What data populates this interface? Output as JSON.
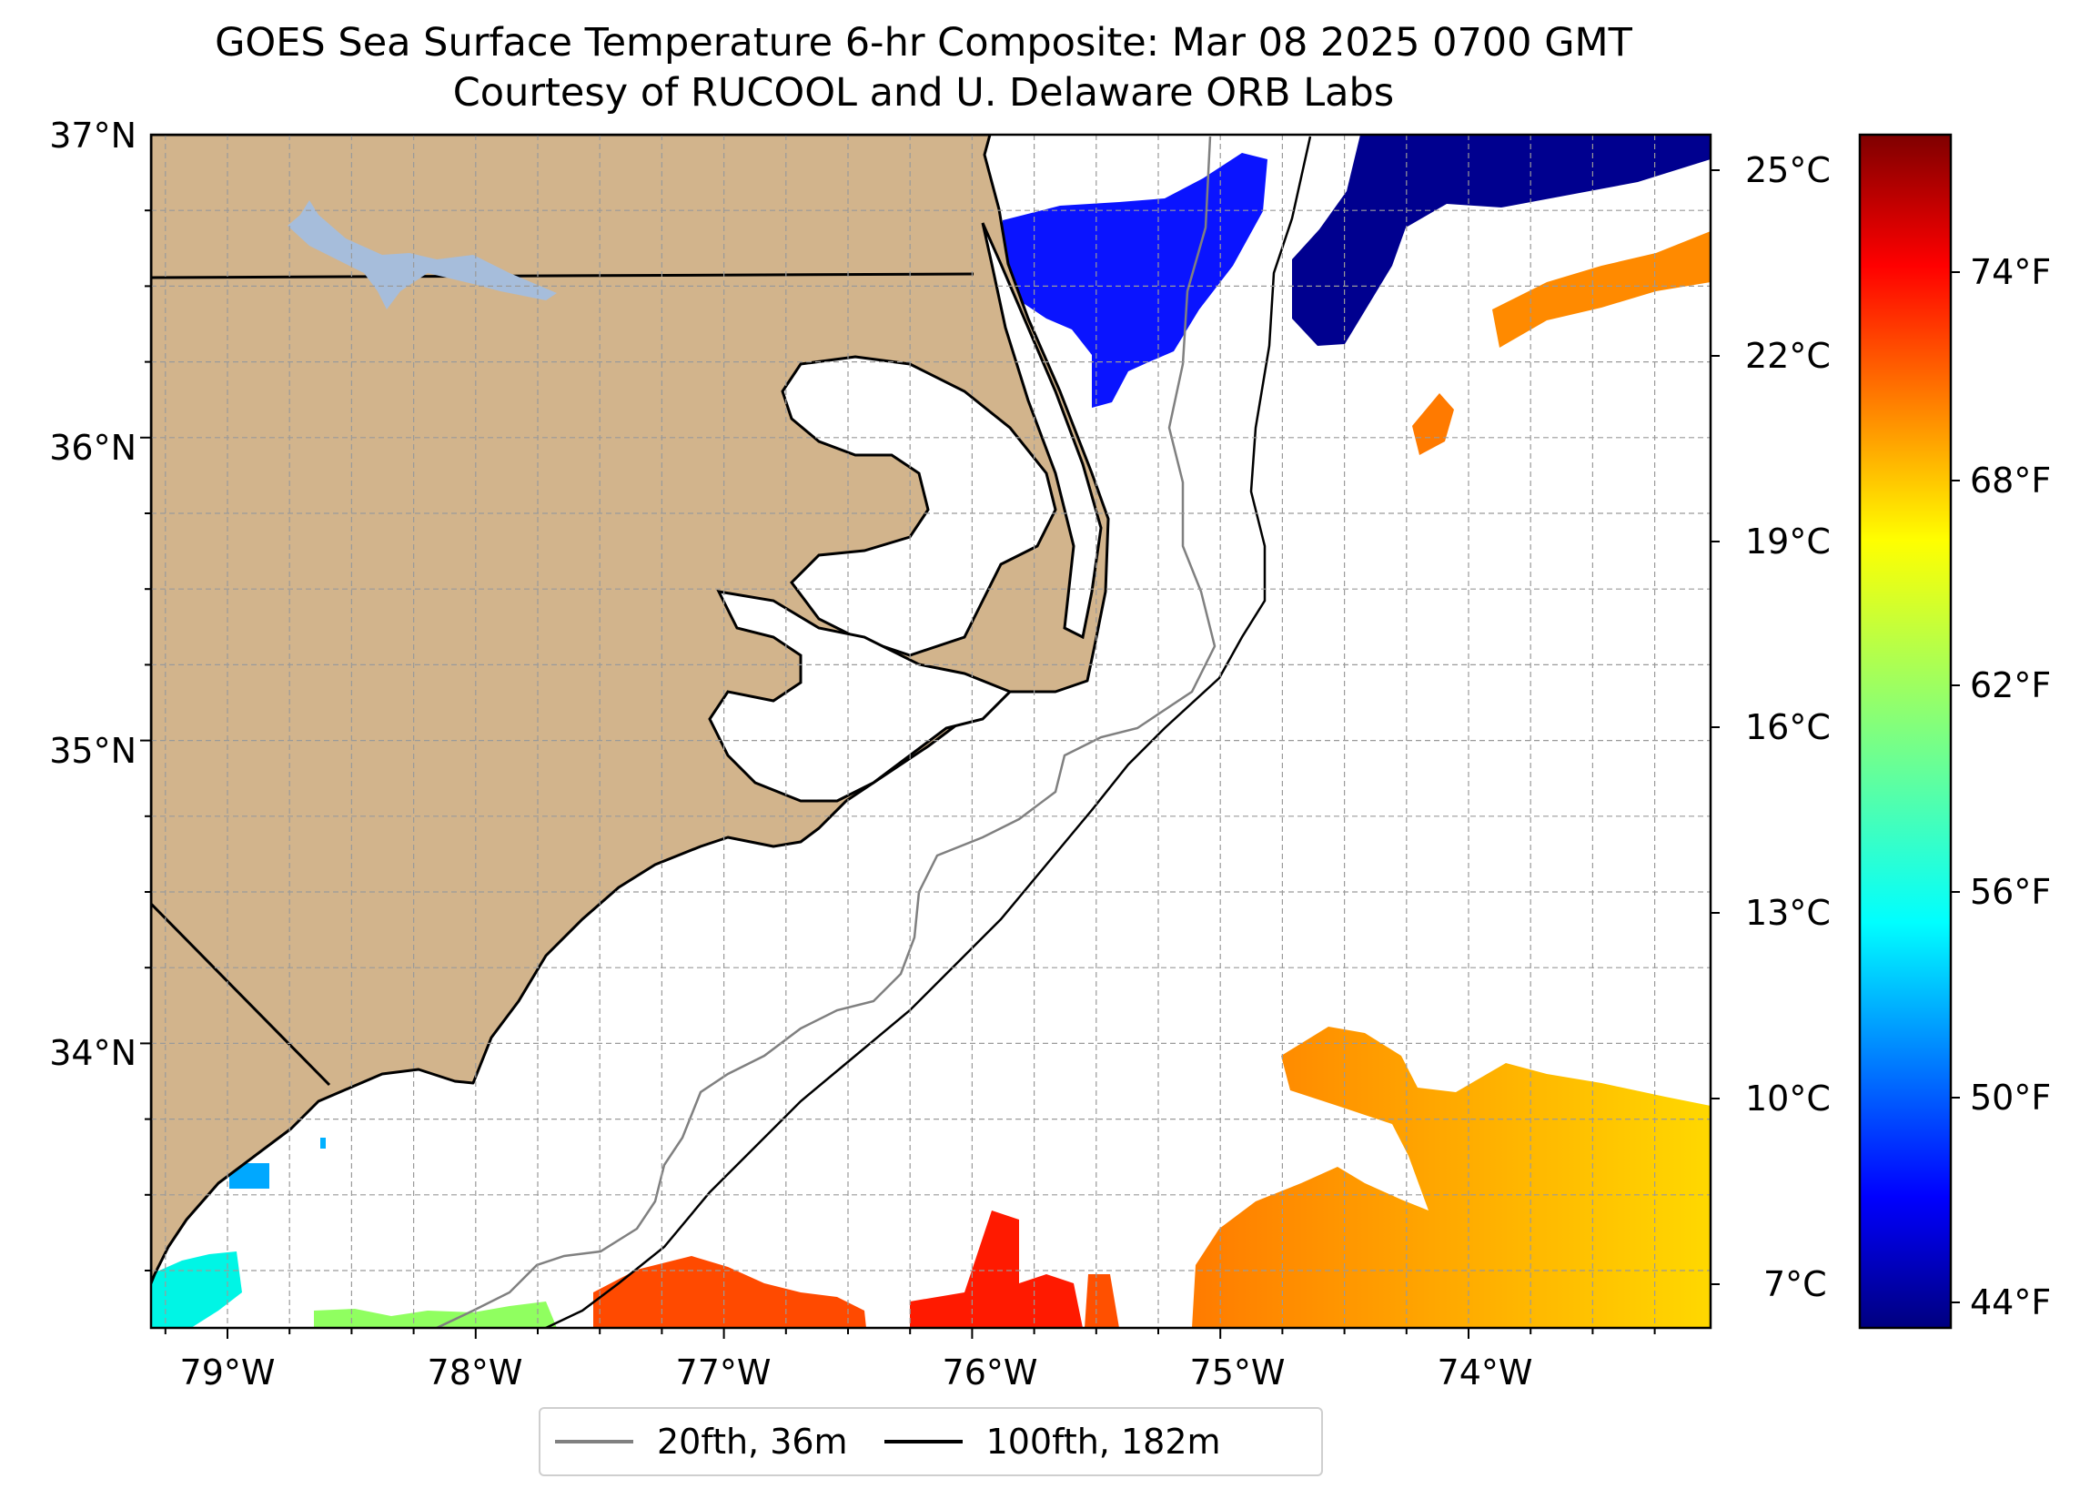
{
  "title": {
    "line1": "GOES Sea Surface Temperature 6-hr Composite: Mar 08 2025 0700 GMT",
    "line2": "Courtesy of RUCOOL and U. Delaware ORB Labs"
  },
  "map": {
    "lat_labels": [
      "37°N",
      "36°N",
      "35°N",
      "34°N"
    ],
    "lon_labels": [
      "79°W",
      "78°W",
      "77°W",
      "76°W",
      "75°W",
      "74°W"
    ],
    "lon_range": [
      -79.3,
      -73.0
    ],
    "lat_range": [
      33.1,
      37.0
    ],
    "land_color": "#d2b48c",
    "lake_color": "#a6bddb",
    "grid": "dashed gray, 0.25° spacing"
  },
  "colorbar": {
    "celsius_labels": [
      "25°C",
      "22°C",
      "19°C",
      "16°C",
      "13°C",
      "10°C",
      "7°C"
    ],
    "fahrenheit_labels": [
      "74°F",
      "68°F",
      "62°F",
      "56°F",
      "50°F",
      "44°F"
    ],
    "colormap": "jet",
    "range_f": [
      42.8,
      79
    ]
  },
  "legend": {
    "items": [
      {
        "label": "20fth, 36m",
        "color": "#808080"
      },
      {
        "label": "100fth, 182m",
        "color": "#000000"
      }
    ]
  }
}
